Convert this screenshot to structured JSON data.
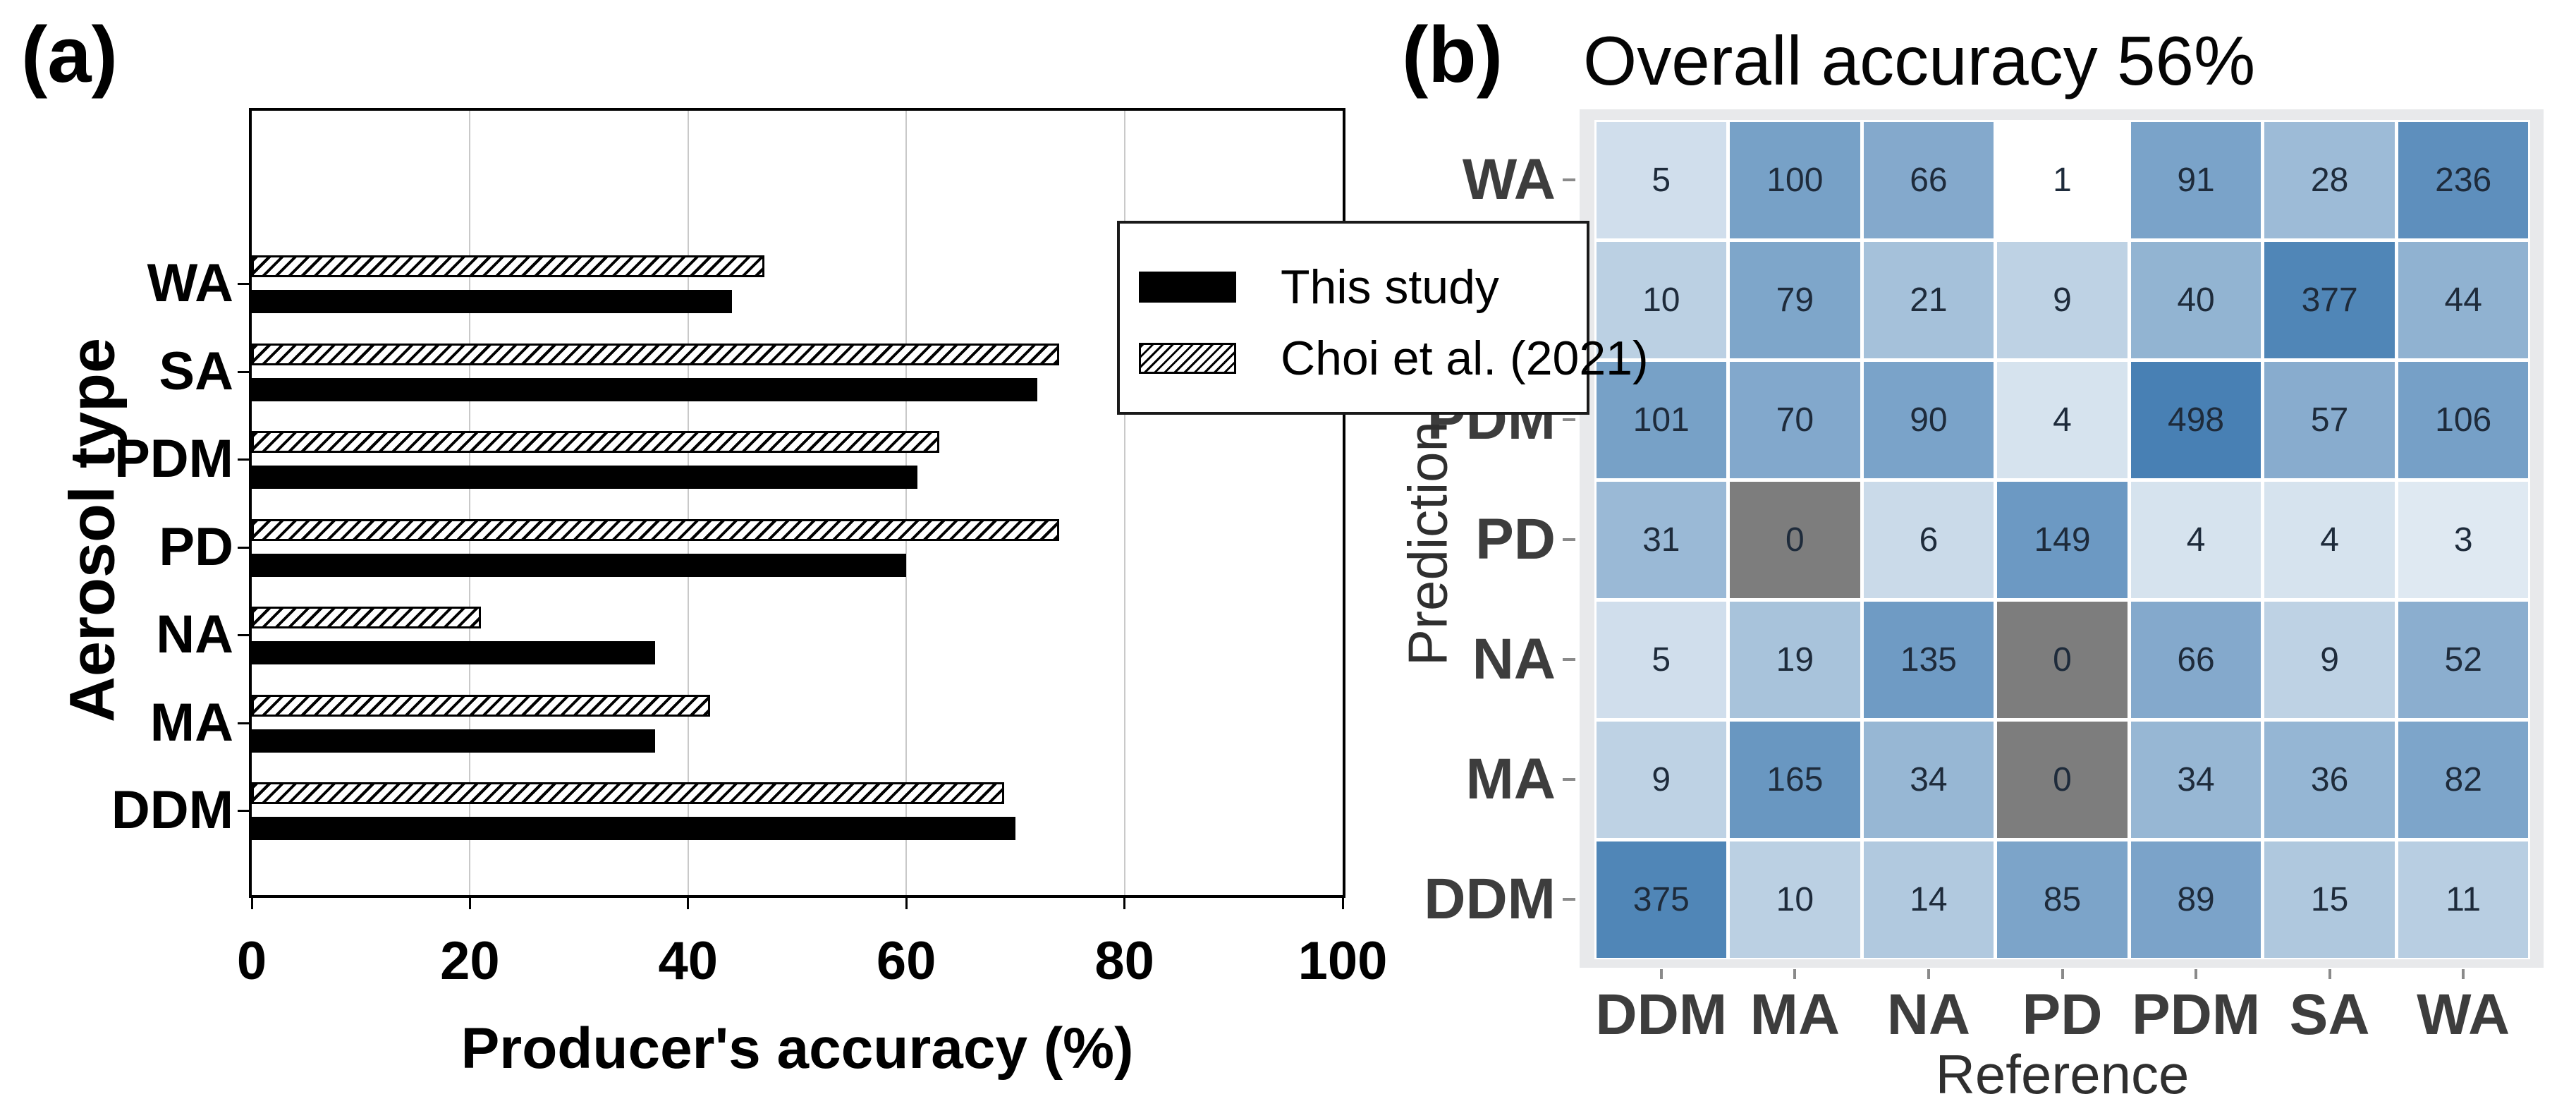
{
  "figure": {
    "background": "#ffffff"
  },
  "chart_data": [
    {
      "type": "bar",
      "orientation": "horizontal",
      "panel_label": "(a)",
      "title": "",
      "xlabel": "Producer's accuracy (%)",
      "ylabel": "Aerosol type",
      "xlim": [
        0,
        100
      ],
      "x_ticks": [
        0,
        20,
        40,
        60,
        80,
        100
      ],
      "grid": "vertical light-gray at 20,40,60,80",
      "categories": [
        "WA",
        "SA",
        "PDM",
        "PD",
        "NA",
        "MA",
        "DDM"
      ],
      "series": [
        {
          "name": "This study",
          "style": "solid-black",
          "values": [
            44,
            72,
            61,
            60,
            37,
            37,
            70
          ]
        },
        {
          "name": "Choi et al. (2021)",
          "style": "hatched",
          "values": [
            47,
            74,
            63,
            74,
            21,
            42,
            69
          ]
        }
      ],
      "legend": {
        "position": "top-right-inside",
        "entries": [
          {
            "label": "This study",
            "swatch": "solid-black"
          },
          {
            "label": "Choi et al. (2021)",
            "swatch": "hatched"
          }
        ]
      },
      "layout_note": "hatched Choi bar drawn above solid This-study bar for each category",
      "colors": {
        "bar_solid": "#000000",
        "hatch_line": "#000000",
        "gridline": "#c9c9c9"
      }
    },
    {
      "type": "heatmap",
      "panel_label": "(b)",
      "title": "Overall accuracy 56%",
      "xlabel": "Reference",
      "ylabel": "Prediction",
      "row_labels": [
        "WA",
        "SA",
        "PDM",
        "PD",
        "NA",
        "MA",
        "DDM"
      ],
      "col_labels": [
        "DDM",
        "MA",
        "NA",
        "PD",
        "PDM",
        "SA",
        "WA"
      ],
      "values": [
        [
          5,
          100,
          66,
          1,
          91,
          28,
          236
        ],
        [
          10,
          79,
          21,
          9,
          40,
          377,
          44
        ],
        [
          101,
          70,
          90,
          4,
          498,
          57,
          106
        ],
        [
          31,
          0,
          6,
          149,
          4,
          4,
          3
        ],
        [
          5,
          19,
          135,
          0,
          66,
          9,
          52
        ],
        [
          9,
          165,
          34,
          0,
          34,
          36,
          82
        ],
        [
          375,
          10,
          14,
          85,
          89,
          15,
          11
        ]
      ],
      "color_scale": {
        "mapping": "logarithmic on cell value",
        "low_value": 1,
        "high_value": 500,
        "low": "#ffffff",
        "high": "#4880b4",
        "zero": "#7d7d7d",
        "panel_bg": "#e8e9eb",
        "gridline": "#ffffff",
        "label_color": "#3d3d3d",
        "cell_text_color": "#1e2b3b"
      },
      "legend_position": "none"
    }
  ]
}
